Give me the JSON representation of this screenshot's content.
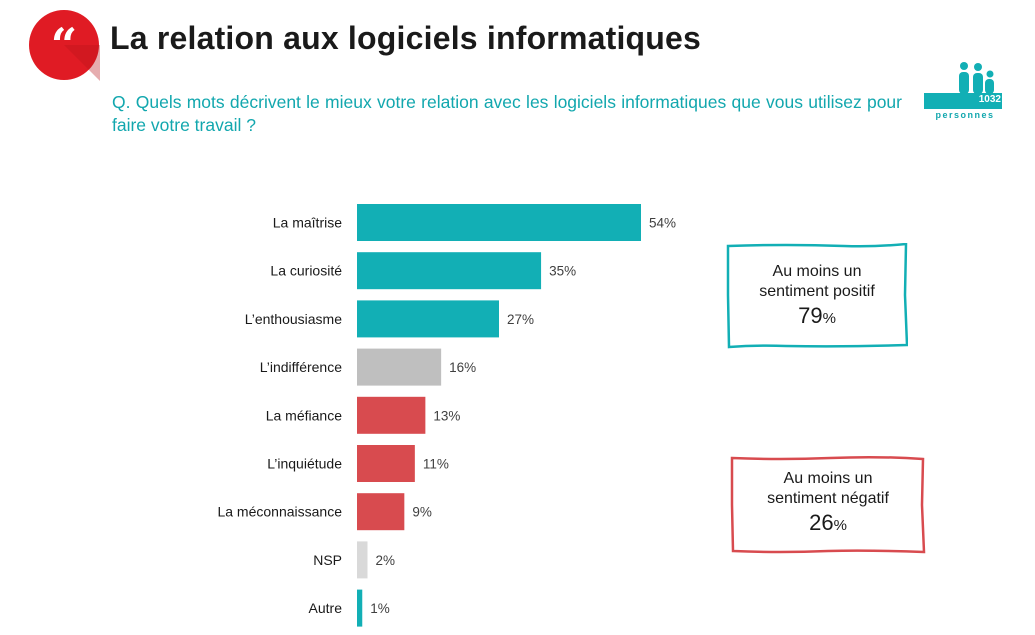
{
  "header": {
    "title": "La relation aux logiciels informatiques",
    "question": "Q. Quels mots décrivent le mieux votre relation avec les logiciels informatiques que vous utilisez pour faire votre travail ?",
    "sample_count": "1032",
    "sample_label": "personnes"
  },
  "colors": {
    "teal": "#12afb5",
    "grey": "#bfbfbf",
    "red": "#d84b4f",
    "light_grey": "#d9d9d9",
    "badge_red": "#e01b24"
  },
  "chart_data": {
    "type": "bar",
    "orientation": "horizontal",
    "categories": [
      "La maîtrise",
      "La curiosité",
      "L’enthousiasme",
      "L’indifférence",
      "La méfiance",
      "L’inquiétude",
      "La méconnaissance",
      "NSP",
      "Autre"
    ],
    "values": [
      54,
      35,
      27,
      16,
      13,
      11,
      9,
      2,
      1
    ],
    "value_labels": [
      "54%",
      "35%",
      "27%",
      "16%",
      "13%",
      "11%",
      "9%",
      "2%",
      "1%"
    ],
    "bar_colors": [
      "#12afb5",
      "#12afb5",
      "#12afb5",
      "#bfbfbf",
      "#d84b4f",
      "#d84b4f",
      "#d84b4f",
      "#d9d9d9",
      "#12afb5"
    ],
    "unit": "%",
    "xlim": [
      0,
      54
    ],
    "grid": false,
    "title": "",
    "xlabel": "",
    "ylabel": ""
  },
  "callouts": {
    "positive": {
      "line1": "Au moins un",
      "line2": "sentiment positif",
      "value": "79",
      "unit": "%",
      "color": "#12afb5"
    },
    "negative": {
      "line1": "Au moins un",
      "line2": "sentiment négatif",
      "value": "26",
      "unit": "%",
      "color": "#d84b4f"
    }
  }
}
